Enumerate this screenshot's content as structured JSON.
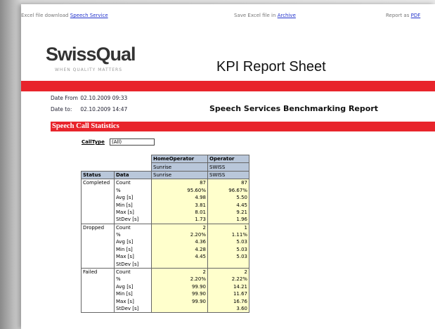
{
  "toolbar": {
    "download": {
      "text": "Excel file download",
      "link": "Speech Service"
    },
    "save": {
      "text": "Save Excel file in",
      "link": "Archive"
    },
    "report": {
      "text": "Report as",
      "link": "PDF"
    }
  },
  "header": {
    "logo": "SwissQual",
    "tagline": "WHEN QUALITY MATTERS",
    "title": "KPI Report Sheet"
  },
  "dates": {
    "from_label": "Date From",
    "from": "02.10.2009 09:33",
    "to_label": "Date to:",
    "to": "02.10.2009 14:47"
  },
  "report_title": "Speech Services Benchmarking Report",
  "section": "Speech Call Statistics",
  "filter": {
    "label": "CallType",
    "value": "(All)"
  },
  "table": {
    "col_headers": [
      "HomeOperator",
      "Operator"
    ],
    "operators": [
      "Sunrise",
      "SWISS"
    ],
    "row_headers": [
      "Status",
      "Data"
    ],
    "columns": [
      "Sunrise",
      "SWISS"
    ],
    "groups": [
      {
        "status": "Completed",
        "rows": [
          [
            "Count",
            "87",
            "87"
          ],
          [
            "%",
            "95.60%",
            "96.67%"
          ],
          [
            "Avg [s]",
            "4.98",
            "5.50"
          ],
          [
            "Min [s]",
            "3.81",
            "4.45"
          ],
          [
            "Max [s]",
            "8.01",
            "9.21"
          ],
          [
            "StDev [s]",
            "1.73",
            "1.96"
          ]
        ]
      },
      {
        "status": "Dropped",
        "rows": [
          [
            "Count",
            "2",
            "1"
          ],
          [
            "%",
            "2.20%",
            "1.11%"
          ],
          [
            "Avg [s]",
            "4.36",
            "5.03"
          ],
          [
            "Min [s]",
            "4.28",
            "5.03"
          ],
          [
            "Max [s]",
            "4.45",
            "5.03"
          ],
          [
            "StDev [s]",
            null,
            null
          ]
        ]
      },
      {
        "status": "Failed",
        "rows": [
          [
            "Count",
            "2",
            "2"
          ],
          [
            "%",
            "2.20%",
            "2.22%"
          ],
          [
            "Avg [s]",
            "99.90",
            "14.21"
          ],
          [
            "Min [s]",
            "99.90",
            "11.67"
          ],
          [
            "Max [s]",
            "99.90",
            "16.76"
          ],
          [
            "StDev [s]",
            null,
            "3.60"
          ]
        ]
      }
    ]
  }
}
